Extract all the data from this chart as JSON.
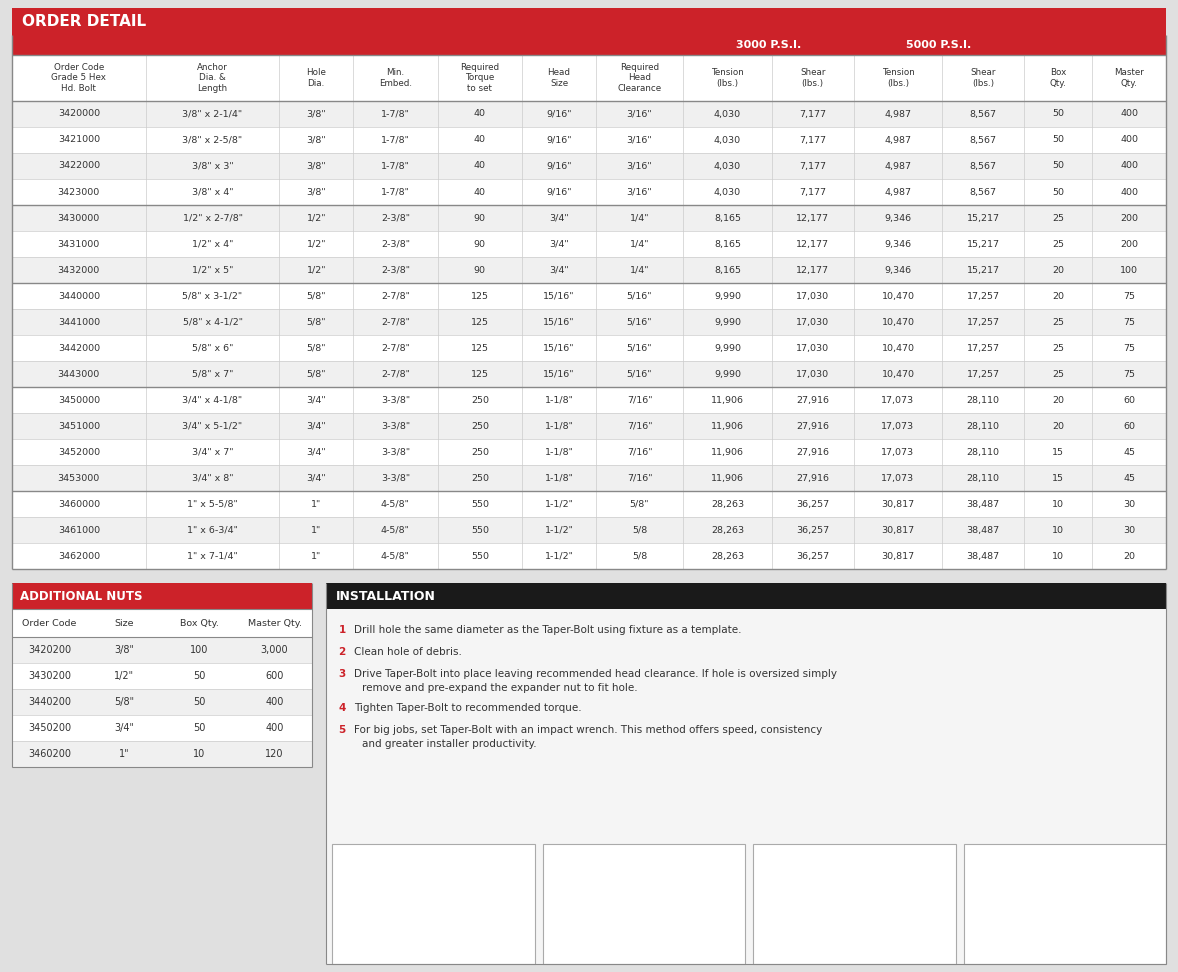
{
  "title": "ORDER DETAIL",
  "title_bg": "#cc2229",
  "title_text_color": "#ffffff",
  "header_3000": "3000 P.S.I.",
  "header_5000": "5000 P.S.I.",
  "col_headers": [
    "Order Code\nGrade 5 Hex\nHd. Bolt",
    "Anchor\nDia. &\nLength",
    "Hole\nDia.",
    "Min.\nEmbed.",
    "Required\nTorque\nto set",
    "Head\nSize",
    "Required\nHead\nClearance",
    "Tension\n(lbs.)",
    "Shear\n(lbs.)",
    "Tension\n(lbs.)",
    "Shear\n(lbs.)",
    "Box\nQty.",
    "Master\nQty."
  ],
  "main_data": [
    [
      "3420000",
      "3/8\" x 2-1/4\"",
      "3/8\"",
      "1-7/8\"",
      "40",
      "9/16\"",
      "3/16\"",
      "4,030",
      "7,177",
      "4,987",
      "8,567",
      "50",
      "400"
    ],
    [
      "3421000",
      "3/8\" x 2-5/8\"",
      "3/8\"",
      "1-7/8\"",
      "40",
      "9/16\"",
      "3/16\"",
      "4,030",
      "7,177",
      "4,987",
      "8,567",
      "50",
      "400"
    ],
    [
      "3422000",
      "3/8\" x 3\"",
      "3/8\"",
      "1-7/8\"",
      "40",
      "9/16\"",
      "3/16\"",
      "4,030",
      "7,177",
      "4,987",
      "8,567",
      "50",
      "400"
    ],
    [
      "3423000",
      "3/8\" x 4\"",
      "3/8\"",
      "1-7/8\"",
      "40",
      "9/16\"",
      "3/16\"",
      "4,030",
      "7,177",
      "4,987",
      "8,567",
      "50",
      "400"
    ],
    [
      "3430000",
      "1/2\" x 2-7/8\"",
      "1/2\"",
      "2-3/8\"",
      "90",
      "3/4\"",
      "1/4\"",
      "8,165",
      "12,177",
      "9,346",
      "15,217",
      "25",
      "200"
    ],
    [
      "3431000",
      "1/2\" x 4\"",
      "1/2\"",
      "2-3/8\"",
      "90",
      "3/4\"",
      "1/4\"",
      "8,165",
      "12,177",
      "9,346",
      "15,217",
      "25",
      "200"
    ],
    [
      "3432000",
      "1/2\" x 5\"",
      "1/2\"",
      "2-3/8\"",
      "90",
      "3/4\"",
      "1/4\"",
      "8,165",
      "12,177",
      "9,346",
      "15,217",
      "20",
      "100"
    ],
    [
      "3440000",
      "5/8\" x 3-1/2\"",
      "5/8\"",
      "2-7/8\"",
      "125",
      "15/16\"",
      "5/16\"",
      "9,990",
      "17,030",
      "10,470",
      "17,257",
      "20",
      "75"
    ],
    [
      "3441000",
      "5/8\" x 4-1/2\"",
      "5/8\"",
      "2-7/8\"",
      "125",
      "15/16\"",
      "5/16\"",
      "9,990",
      "17,030",
      "10,470",
      "17,257",
      "25",
      "75"
    ],
    [
      "3442000",
      "5/8\" x 6\"",
      "5/8\"",
      "2-7/8\"",
      "125",
      "15/16\"",
      "5/16\"",
      "9,990",
      "17,030",
      "10,470",
      "17,257",
      "25",
      "75"
    ],
    [
      "3443000",
      "5/8\" x 7\"",
      "5/8\"",
      "2-7/8\"",
      "125",
      "15/16\"",
      "5/16\"",
      "9,990",
      "17,030",
      "10,470",
      "17,257",
      "25",
      "75"
    ],
    [
      "3450000",
      "3/4\" x 4-1/8\"",
      "3/4\"",
      "3-3/8\"",
      "250",
      "1-1/8\"",
      "7/16\"",
      "11,906",
      "27,916",
      "17,073",
      "28,110",
      "20",
      "60"
    ],
    [
      "3451000",
      "3/4\" x 5-1/2\"",
      "3/4\"",
      "3-3/8\"",
      "250",
      "1-1/8\"",
      "7/16\"",
      "11,906",
      "27,916",
      "17,073",
      "28,110",
      "20",
      "60"
    ],
    [
      "3452000",
      "3/4\" x 7\"",
      "3/4\"",
      "3-3/8\"",
      "250",
      "1-1/8\"",
      "7/16\"",
      "11,906",
      "27,916",
      "17,073",
      "28,110",
      "15",
      "45"
    ],
    [
      "3453000",
      "3/4\" x 8\"",
      "3/4\"",
      "3-3/8\"",
      "250",
      "1-1/8\"",
      "7/16\"",
      "11,906",
      "27,916",
      "17,073",
      "28,110",
      "15",
      "45"
    ],
    [
      "3460000",
      "1\" x 5-5/8\"",
      "1\"",
      "4-5/8\"",
      "550",
      "1-1/2\"",
      "5/8\"",
      "28,263",
      "36,257",
      "30,817",
      "38,487",
      "10",
      "30"
    ],
    [
      "3461000",
      "1\" x 6-3/4\"",
      "1\"",
      "4-5/8\"",
      "550",
      "1-1/2\"",
      "5/8",
      "28,263",
      "36,257",
      "30,817",
      "38,487",
      "10",
      "30"
    ],
    [
      "3462000",
      "1\" x 7-1/4\"",
      "1\"",
      "4-5/8\"",
      "550",
      "1-1/2\"",
      "5/8",
      "28,263",
      "36,257",
      "30,817",
      "38,487",
      "10",
      "20"
    ]
  ],
  "group_separators_after": [
    3,
    6,
    10,
    14
  ],
  "alt_row_color": "#f0f0f0",
  "white_row_color": "#ffffff",
  "text_color": "#333333",
  "additional_nuts_title": "ADDITIONAL NUTS",
  "additional_nuts_headers": [
    "Order Code",
    "Size",
    "Box Qty.",
    "Master Qty."
  ],
  "additional_nuts_data": [
    [
      "3420200",
      "3/8\"",
      "100",
      "3,000"
    ],
    [
      "3430200",
      "1/2\"",
      "50",
      "600"
    ],
    [
      "3440200",
      "5/8\"",
      "50",
      "400"
    ],
    [
      "3450200",
      "3/4\"",
      "50",
      "400"
    ],
    [
      "3460200",
      "1\"",
      "10",
      "120"
    ]
  ],
  "installation_title": "INSTALLATION",
  "installation_title_bg": "#1a1a1a",
  "installation_steps": [
    [
      "1",
      "Drill hole the same diameter as the Taper-Bolt using fixture as a template."
    ],
    [
      "2",
      "Clean hole of debris."
    ],
    [
      "3",
      "Drive Taper-Bolt into place leaving recommended head clearance. If hole is oversized simply\nremove and pre-expand the expander nut to fit hole."
    ],
    [
      "4",
      "Tighten Taper-Bolt to recommended torque."
    ],
    [
      "5",
      "For big jobs, set Taper-Bolt with an impact wrench. This method offers speed, consistency\nand greater installer productivity."
    ]
  ],
  "step_color": "#cc2229",
  "bg_color": "#e0e0e0",
  "section_bg": "#f5f5f5"
}
